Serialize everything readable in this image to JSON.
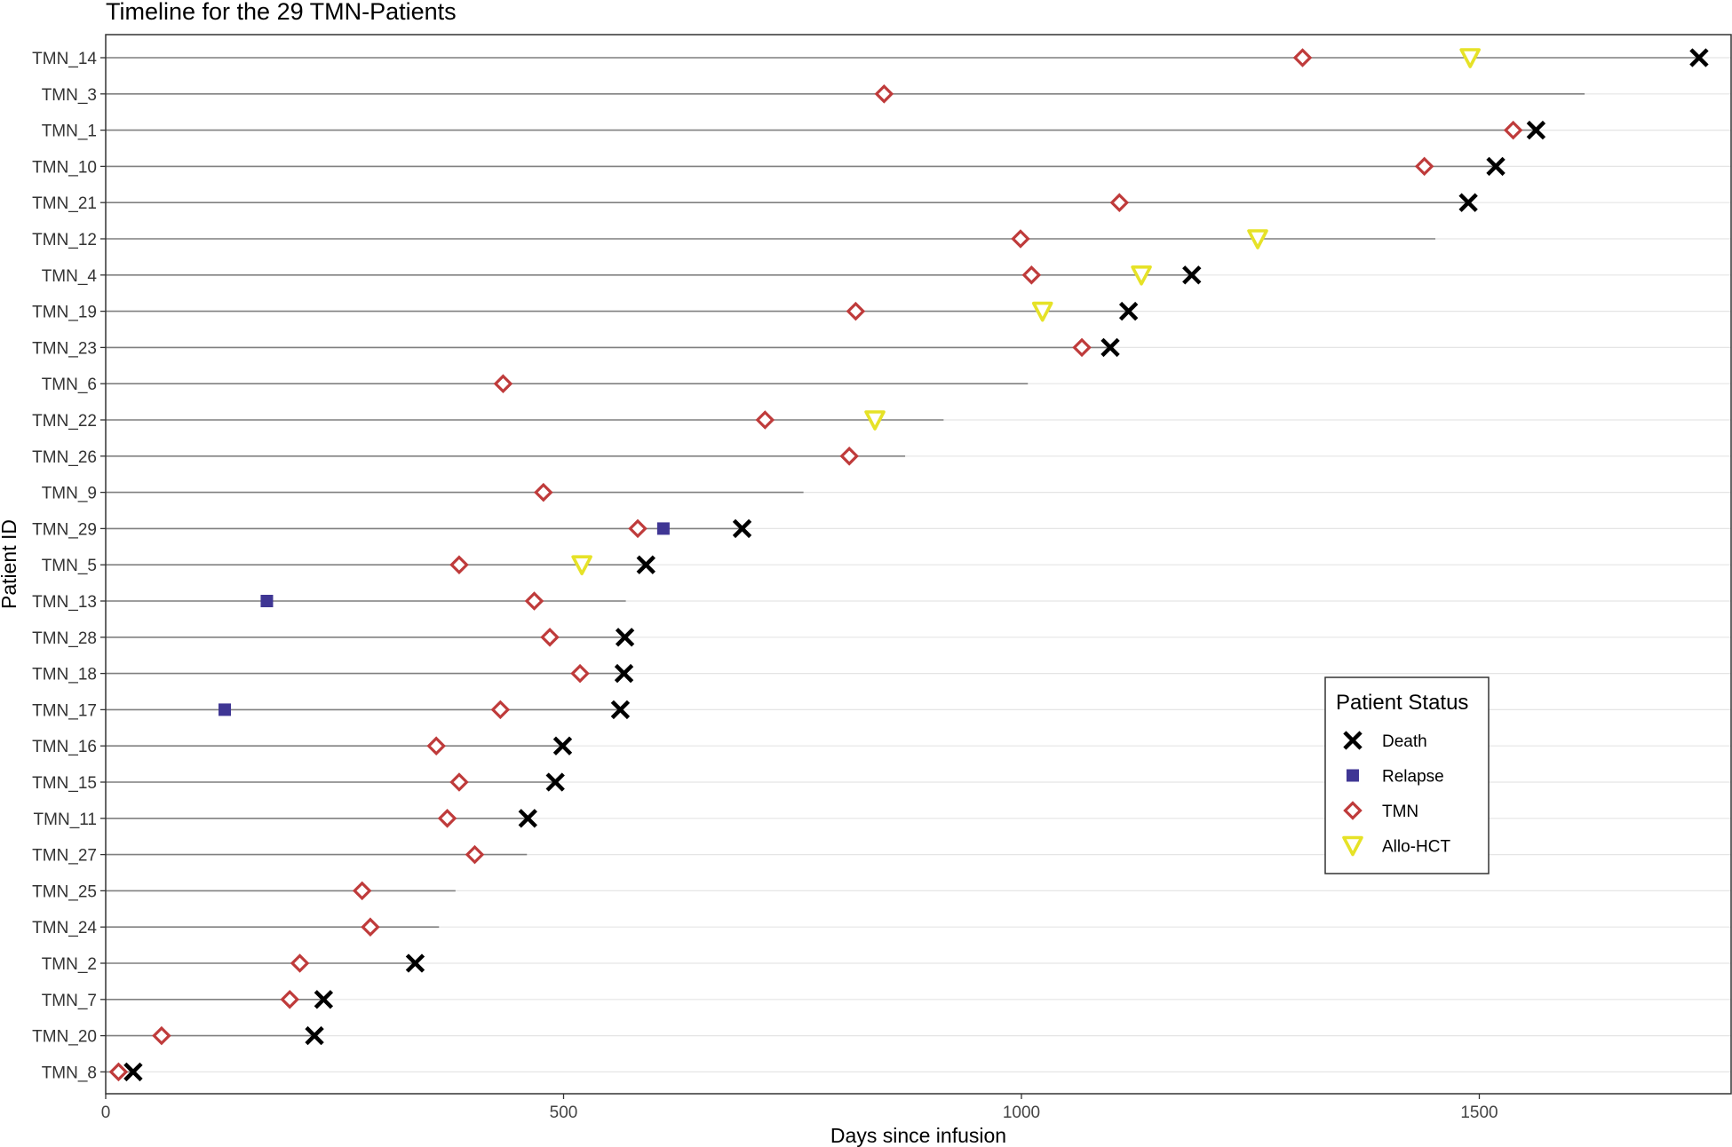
{
  "chart_data": {
    "type": "timeline",
    "title": "Timeline for the 29 TMN-Patients",
    "xlabel": "Days since infusion",
    "ylabel": "Patient ID",
    "xlim": [
      0,
      1770
    ],
    "xticks": [
      0,
      500,
      1000,
      1500
    ],
    "legend": {
      "title": "Patient Status",
      "position": "right",
      "entries": [
        {
          "key": "death",
          "label": "Death"
        },
        {
          "key": "relapse",
          "label": "Relapse"
        },
        {
          "key": "tmn",
          "label": "TMN"
        },
        {
          "key": "allo",
          "label": "Allo-HCT"
        }
      ]
    },
    "colors": {
      "line": "#808080",
      "grid": "#e5e5e5",
      "death": "#000000",
      "relapse": "#3f3694",
      "tmn": "#bf3b3b",
      "allo": "#e6e227"
    },
    "patients": [
      {
        "id": "TMN_14",
        "followup": 1740,
        "tmn": 1307,
        "allo": 1490,
        "death": 1740
      },
      {
        "id": "TMN_3",
        "followup": 1615,
        "tmn": 850
      },
      {
        "id": "TMN_1",
        "followup": 1562,
        "tmn": 1537,
        "death": 1562
      },
      {
        "id": "TMN_10",
        "followup": 1518,
        "tmn": 1440,
        "death": 1518
      },
      {
        "id": "TMN_21",
        "followup": 1488,
        "tmn": 1107,
        "death": 1488
      },
      {
        "id": "TMN_12",
        "followup": 1452,
        "tmn": 999,
        "allo": 1258
      },
      {
        "id": "TMN_4",
        "followup": 1186,
        "tmn": 1011,
        "allo": 1131,
        "death": 1186
      },
      {
        "id": "TMN_19",
        "followup": 1117,
        "tmn": 819,
        "allo": 1023,
        "death": 1117
      },
      {
        "id": "TMN_23",
        "followup": 1097,
        "tmn": 1066,
        "death": 1097
      },
      {
        "id": "TMN_6",
        "followup": 1007,
        "tmn": 434
      },
      {
        "id": "TMN_22",
        "followup": 915,
        "tmn": 720,
        "allo": 840
      },
      {
        "id": "TMN_26",
        "followup": 873,
        "tmn": 812
      },
      {
        "id": "TMN_9",
        "followup": 762,
        "tmn": 478
      },
      {
        "id": "TMN_29",
        "followup": 695,
        "tmn": 581,
        "relapse": 609,
        "death": 695
      },
      {
        "id": "TMN_5",
        "followup": 590,
        "tmn": 386,
        "allo": 520,
        "death": 590
      },
      {
        "id": "TMN_13",
        "followup": 568,
        "tmn": 468,
        "relapse": 176
      },
      {
        "id": "TMN_28",
        "followup": 567,
        "tmn": 485,
        "death": 567
      },
      {
        "id": "TMN_18",
        "followup": 566,
        "tmn": 518,
        "death": 566
      },
      {
        "id": "TMN_17",
        "followup": 562,
        "tmn": 431,
        "relapse": 130,
        "death": 562
      },
      {
        "id": "TMN_16",
        "followup": 499,
        "tmn": 361,
        "death": 499
      },
      {
        "id": "TMN_15",
        "followup": 491,
        "tmn": 386,
        "death": 491
      },
      {
        "id": "TMN_11",
        "followup": 461,
        "tmn": 373,
        "death": 461
      },
      {
        "id": "TMN_27",
        "followup": 460,
        "tmn": 403
      },
      {
        "id": "TMN_25",
        "followup": 382,
        "tmn": 280
      },
      {
        "id": "TMN_24",
        "followup": 364,
        "tmn": 289
      },
      {
        "id": "TMN_2",
        "followup": 338,
        "tmn": 212,
        "death": 338
      },
      {
        "id": "TMN_7",
        "followup": 238,
        "tmn": 201,
        "death": 238
      },
      {
        "id": "TMN_20",
        "followup": 228,
        "tmn": 61,
        "death": 228
      },
      {
        "id": "TMN_8",
        "followup": 30,
        "tmn": 14,
        "death": 30
      }
    ]
  }
}
